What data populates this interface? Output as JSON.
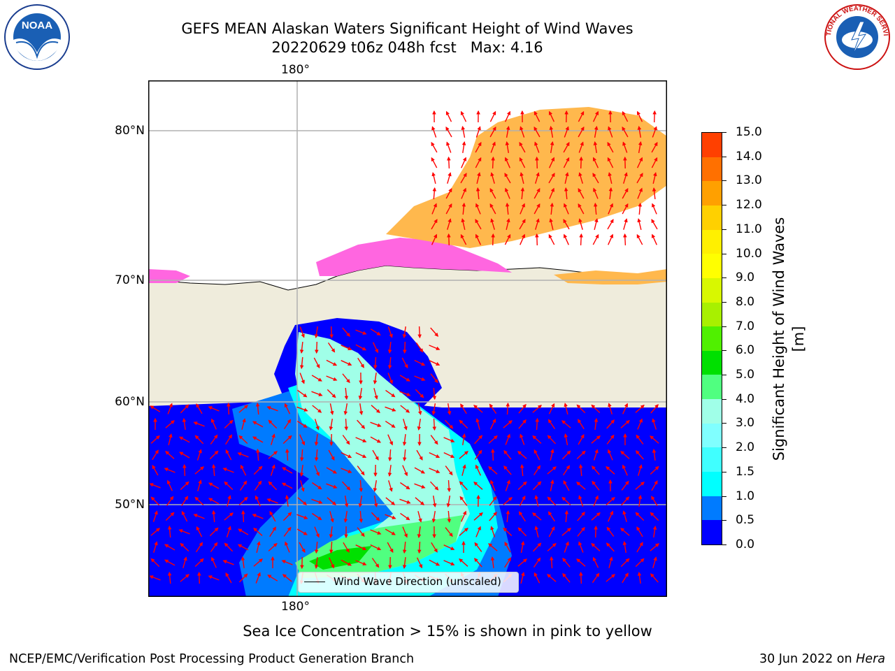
{
  "title": {
    "line1": "GEFS MEAN Alaskan Waters Significant Height of Wind Waves",
    "line2": "20220629 t06z 048h fcst   Max: 4.16"
  },
  "map": {
    "lon_label_top": "180°",
    "lon_label_bottom": "180°",
    "lat_labels": [
      "80°N",
      "70°N",
      "60°N",
      "50°N"
    ],
    "legend_label": "Wind Wave Direction (unscaled)",
    "colors": {
      "land": "#efecdc",
      "ocean_low": "#0000ff",
      "arrow": "#ff0000",
      "ice_pink": "#ff66e0",
      "ice_orange": "#ffb84d"
    }
  },
  "colorbar": {
    "label": "Significant Height of Wind Waves [m]",
    "ticks": [
      "15.0",
      "14.0",
      "13.0",
      "12.0",
      "11.0",
      "10.0",
      "9.0",
      "8.0",
      "7.0",
      "6.0",
      "5.0",
      "4.0",
      "3.0",
      "2.0",
      "1.5",
      "1.0",
      "0.5",
      "0.0"
    ],
    "colors": [
      "#0000ff",
      "#007bff",
      "#00ffff",
      "#40ffff",
      "#80ffff",
      "#a0ffe8",
      "#50ff80",
      "#00e000",
      "#50f000",
      "#a8f000",
      "#d8f800",
      "#ffff00",
      "#fff000",
      "#ffd000",
      "#ffa000",
      "#ff7000",
      "#ff4000",
      "#ff1000"
    ]
  },
  "subtitle": "Sea Ice Concentration > 15% is shown in pink to yellow",
  "footer": {
    "left": "NCEP/EMC/Verification Post Processing Product Generation Branch",
    "right_prefix": "30 Jun 2022 on ",
    "right_host": "Hera"
  },
  "logos": {
    "noaa": "NOAA",
    "nws": "NATIONAL WEATHER SERVICE"
  }
}
